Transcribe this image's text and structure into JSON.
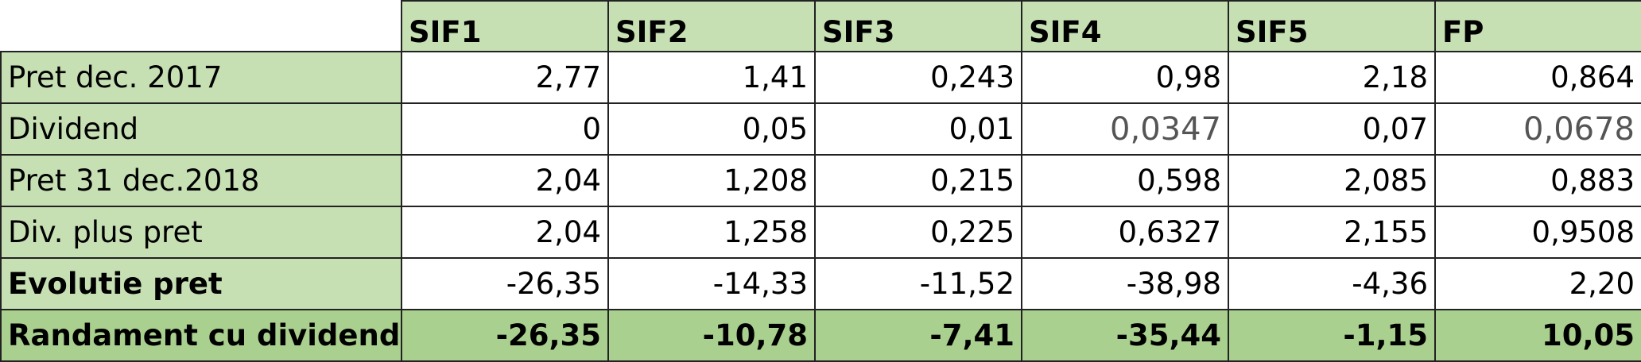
{
  "table": {
    "header": [
      "SIF1",
      "SIF2",
      "SIF3",
      "SIF4",
      "SIF5",
      "FP"
    ],
    "rows": [
      [
        "Pret dec. 2017",
        "2,77",
        "1,41",
        "0,243",
        "0,98",
        "2,18",
        "0,864"
      ],
      [
        "Dividend",
        "0",
        "0,05",
        "0,01",
        "0,0347",
        "0,07",
        "0,0678"
      ],
      [
        "Pret 31 dec.2018",
        "2,04",
        "1,208",
        "0,215",
        "0,598",
        "2,085",
        "0,883"
      ],
      [
        "Div. plus pret",
        "2,04",
        "1,258",
        "0,225",
        "0,6327",
        "2,155",
        "0,9508"
      ],
      [
        "Evolutie pret",
        "-26,35",
        "-14,33",
        "-11,52",
        "-38,98",
        "-4,36",
        "2,20"
      ],
      [
        "Randament cu dividend",
        "-26,35",
        "-10,78",
        "-7,41",
        "-35,44",
        "-1,15",
        "10,05"
      ]
    ]
  }
}
